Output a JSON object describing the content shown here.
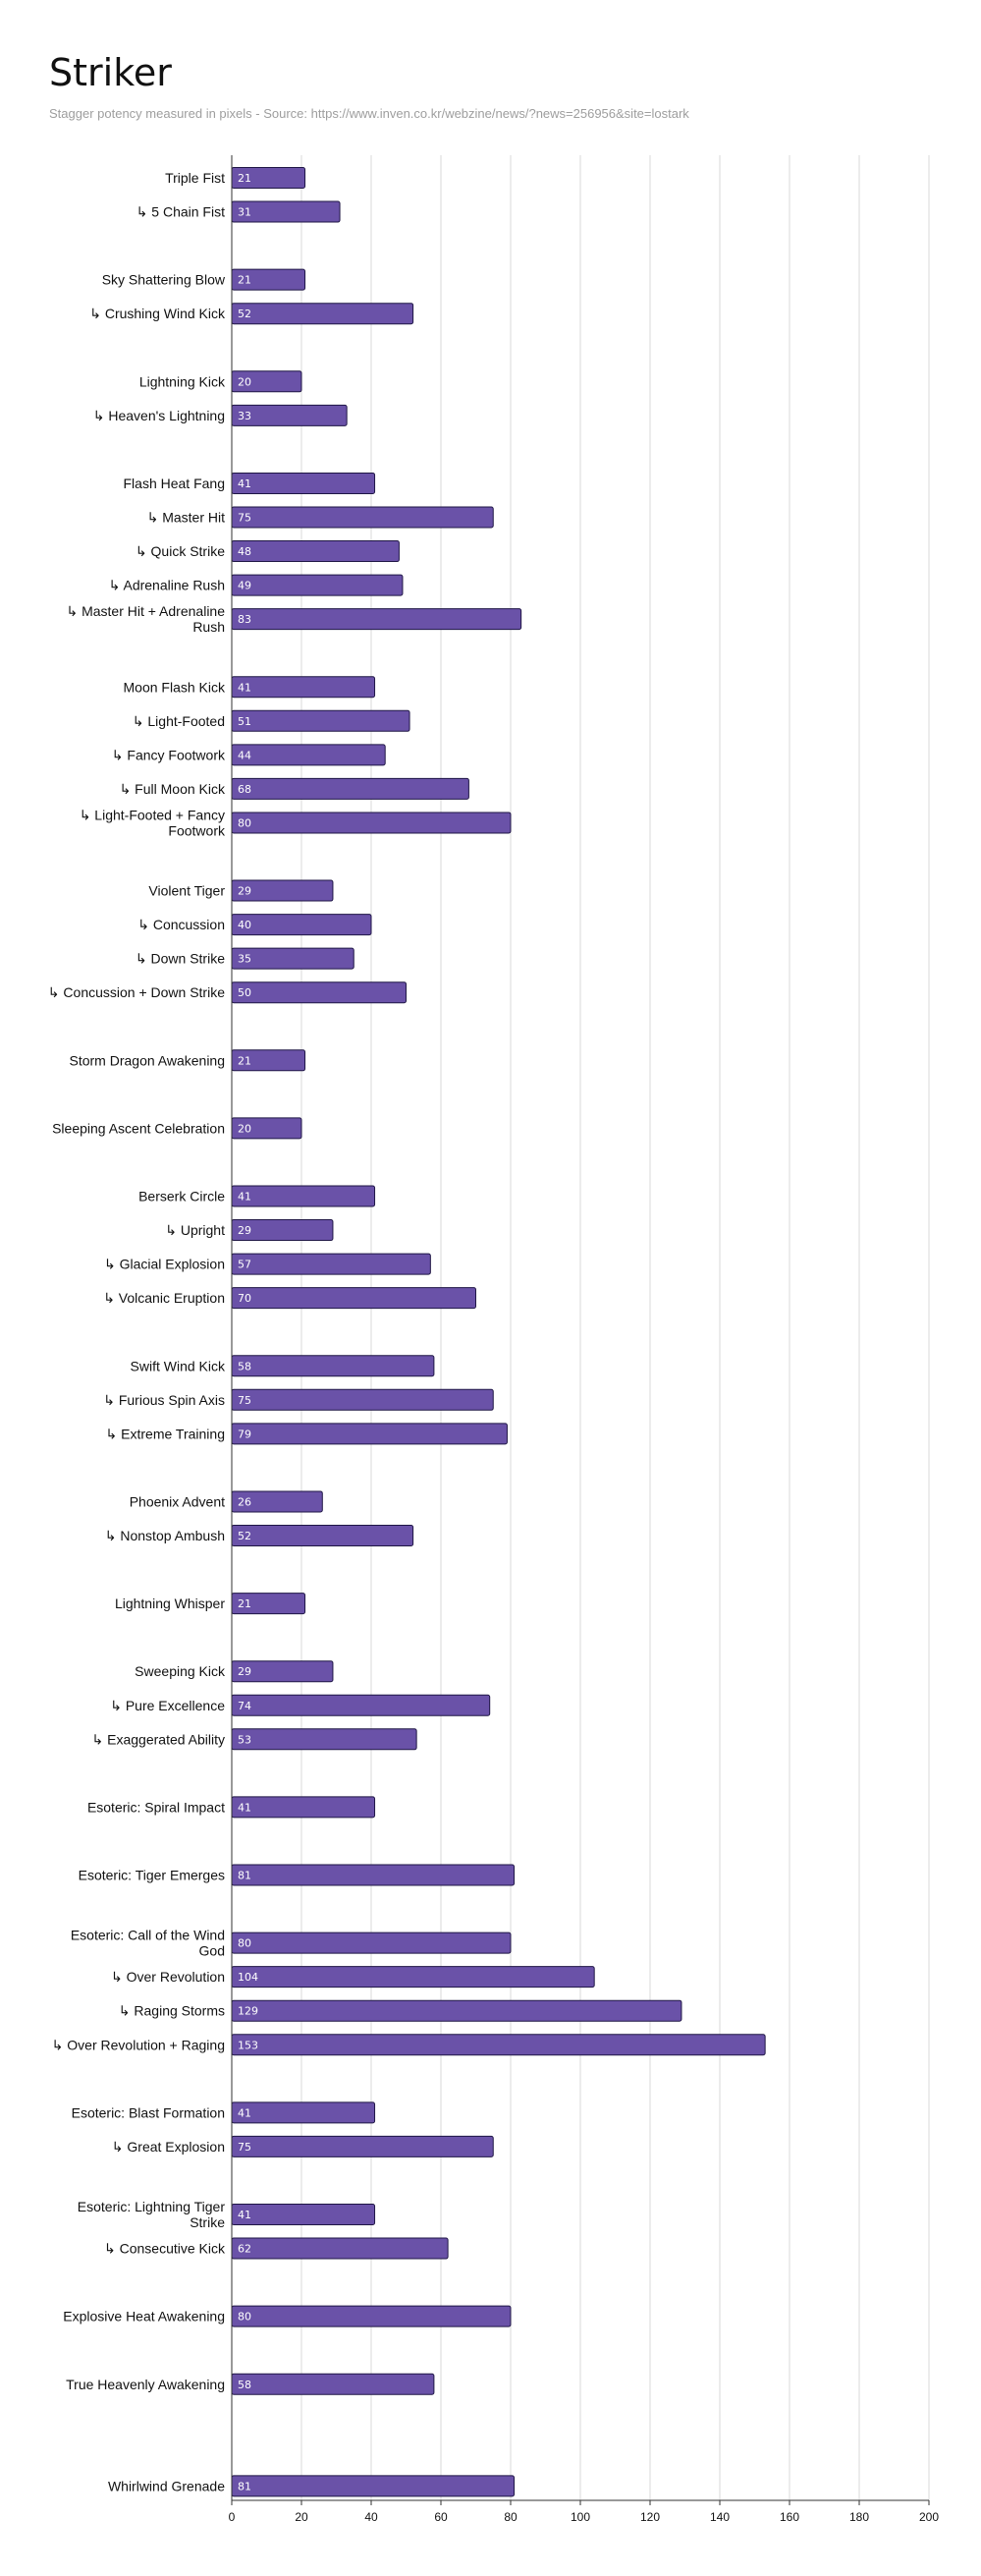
{
  "chart_data": {
    "type": "bar",
    "orientation": "horizontal",
    "title": "Striker",
    "subtitle": "Stagger potency measured in pixels - Source: https://www.inven.co.kr/webzine/news/?news=256956&site=lostark",
    "xlim": [
      0,
      200
    ],
    "xticks": [
      0,
      20,
      40,
      60,
      80,
      100,
      120,
      140,
      160,
      180,
      200
    ],
    "grid": true,
    "bar_color": "#6a52a8",
    "bar_stroke": "#1f1645",
    "categories": [
      "Triple Fist",
      "↳ 5 Chain Fist",
      "",
      "Sky Shattering Blow",
      "↳ Crushing Wind Kick",
      "",
      "Lightning Kick",
      "↳ Heaven's Lightning",
      "",
      "Flash Heat Fang",
      "↳ Master Hit",
      "↳ Quick Strike",
      "↳ Adrenaline Rush",
      "↳ Master Hit + Adrenaline Rush",
      "",
      "Moon Flash Kick",
      "↳ Light-Footed",
      "↳ Fancy Footwork",
      "↳ Full Moon Kick",
      "↳ Light-Footed + Fancy Footwork",
      "",
      "Violent Tiger",
      "↳ Concussion",
      "↳ Down Strike",
      "↳ Concussion + Down Strike",
      "",
      "Storm Dragon Awakening",
      "",
      "Sleeping Ascent Celebration",
      "",
      "Berserk Circle",
      "↳ Upright",
      "↳ Glacial Explosion",
      "↳ Volcanic Eruption",
      "",
      "Swift Wind Kick",
      "↳ Furious Spin Axis",
      "↳ Extreme Training",
      "",
      "Phoenix Advent",
      "↳ Nonstop Ambush",
      "",
      "Lightning Whisper",
      "",
      "Sweeping Kick",
      "↳ Pure Excellence",
      "↳ Exaggerated Ability",
      "",
      "Esoteric: Spiral Impact",
      "",
      "Esoteric: Tiger Emerges",
      "",
      "Esoteric: Call of the Wind God",
      "↳ Over Revolution",
      "↳ Raging Storms",
      "↳ Over Revolution + Raging",
      "",
      "Esoteric: Blast Formation",
      "↳ Great Explosion",
      "",
      "Esoteric: Lightning Tiger Strike",
      "↳ Consecutive Kick",
      "",
      "Explosive Heat Awakening",
      "",
      "True Heavenly Awakening",
      "",
      "",
      "Whirlwind Grenade"
    ],
    "values": [
      21,
      31,
      null,
      21,
      52,
      null,
      20,
      33,
      null,
      41,
      75,
      48,
      49,
      83,
      null,
      41,
      51,
      44,
      68,
      80,
      null,
      29,
      40,
      35,
      50,
      null,
      21,
      null,
      20,
      null,
      41,
      29,
      57,
      70,
      null,
      58,
      75,
      79,
      null,
      26,
      52,
      null,
      21,
      null,
      29,
      74,
      53,
      null,
      41,
      null,
      81,
      null,
      80,
      104,
      129,
      153,
      null,
      41,
      75,
      null,
      41,
      62,
      null,
      80,
      null,
      58,
      null,
      null,
      81
    ]
  }
}
